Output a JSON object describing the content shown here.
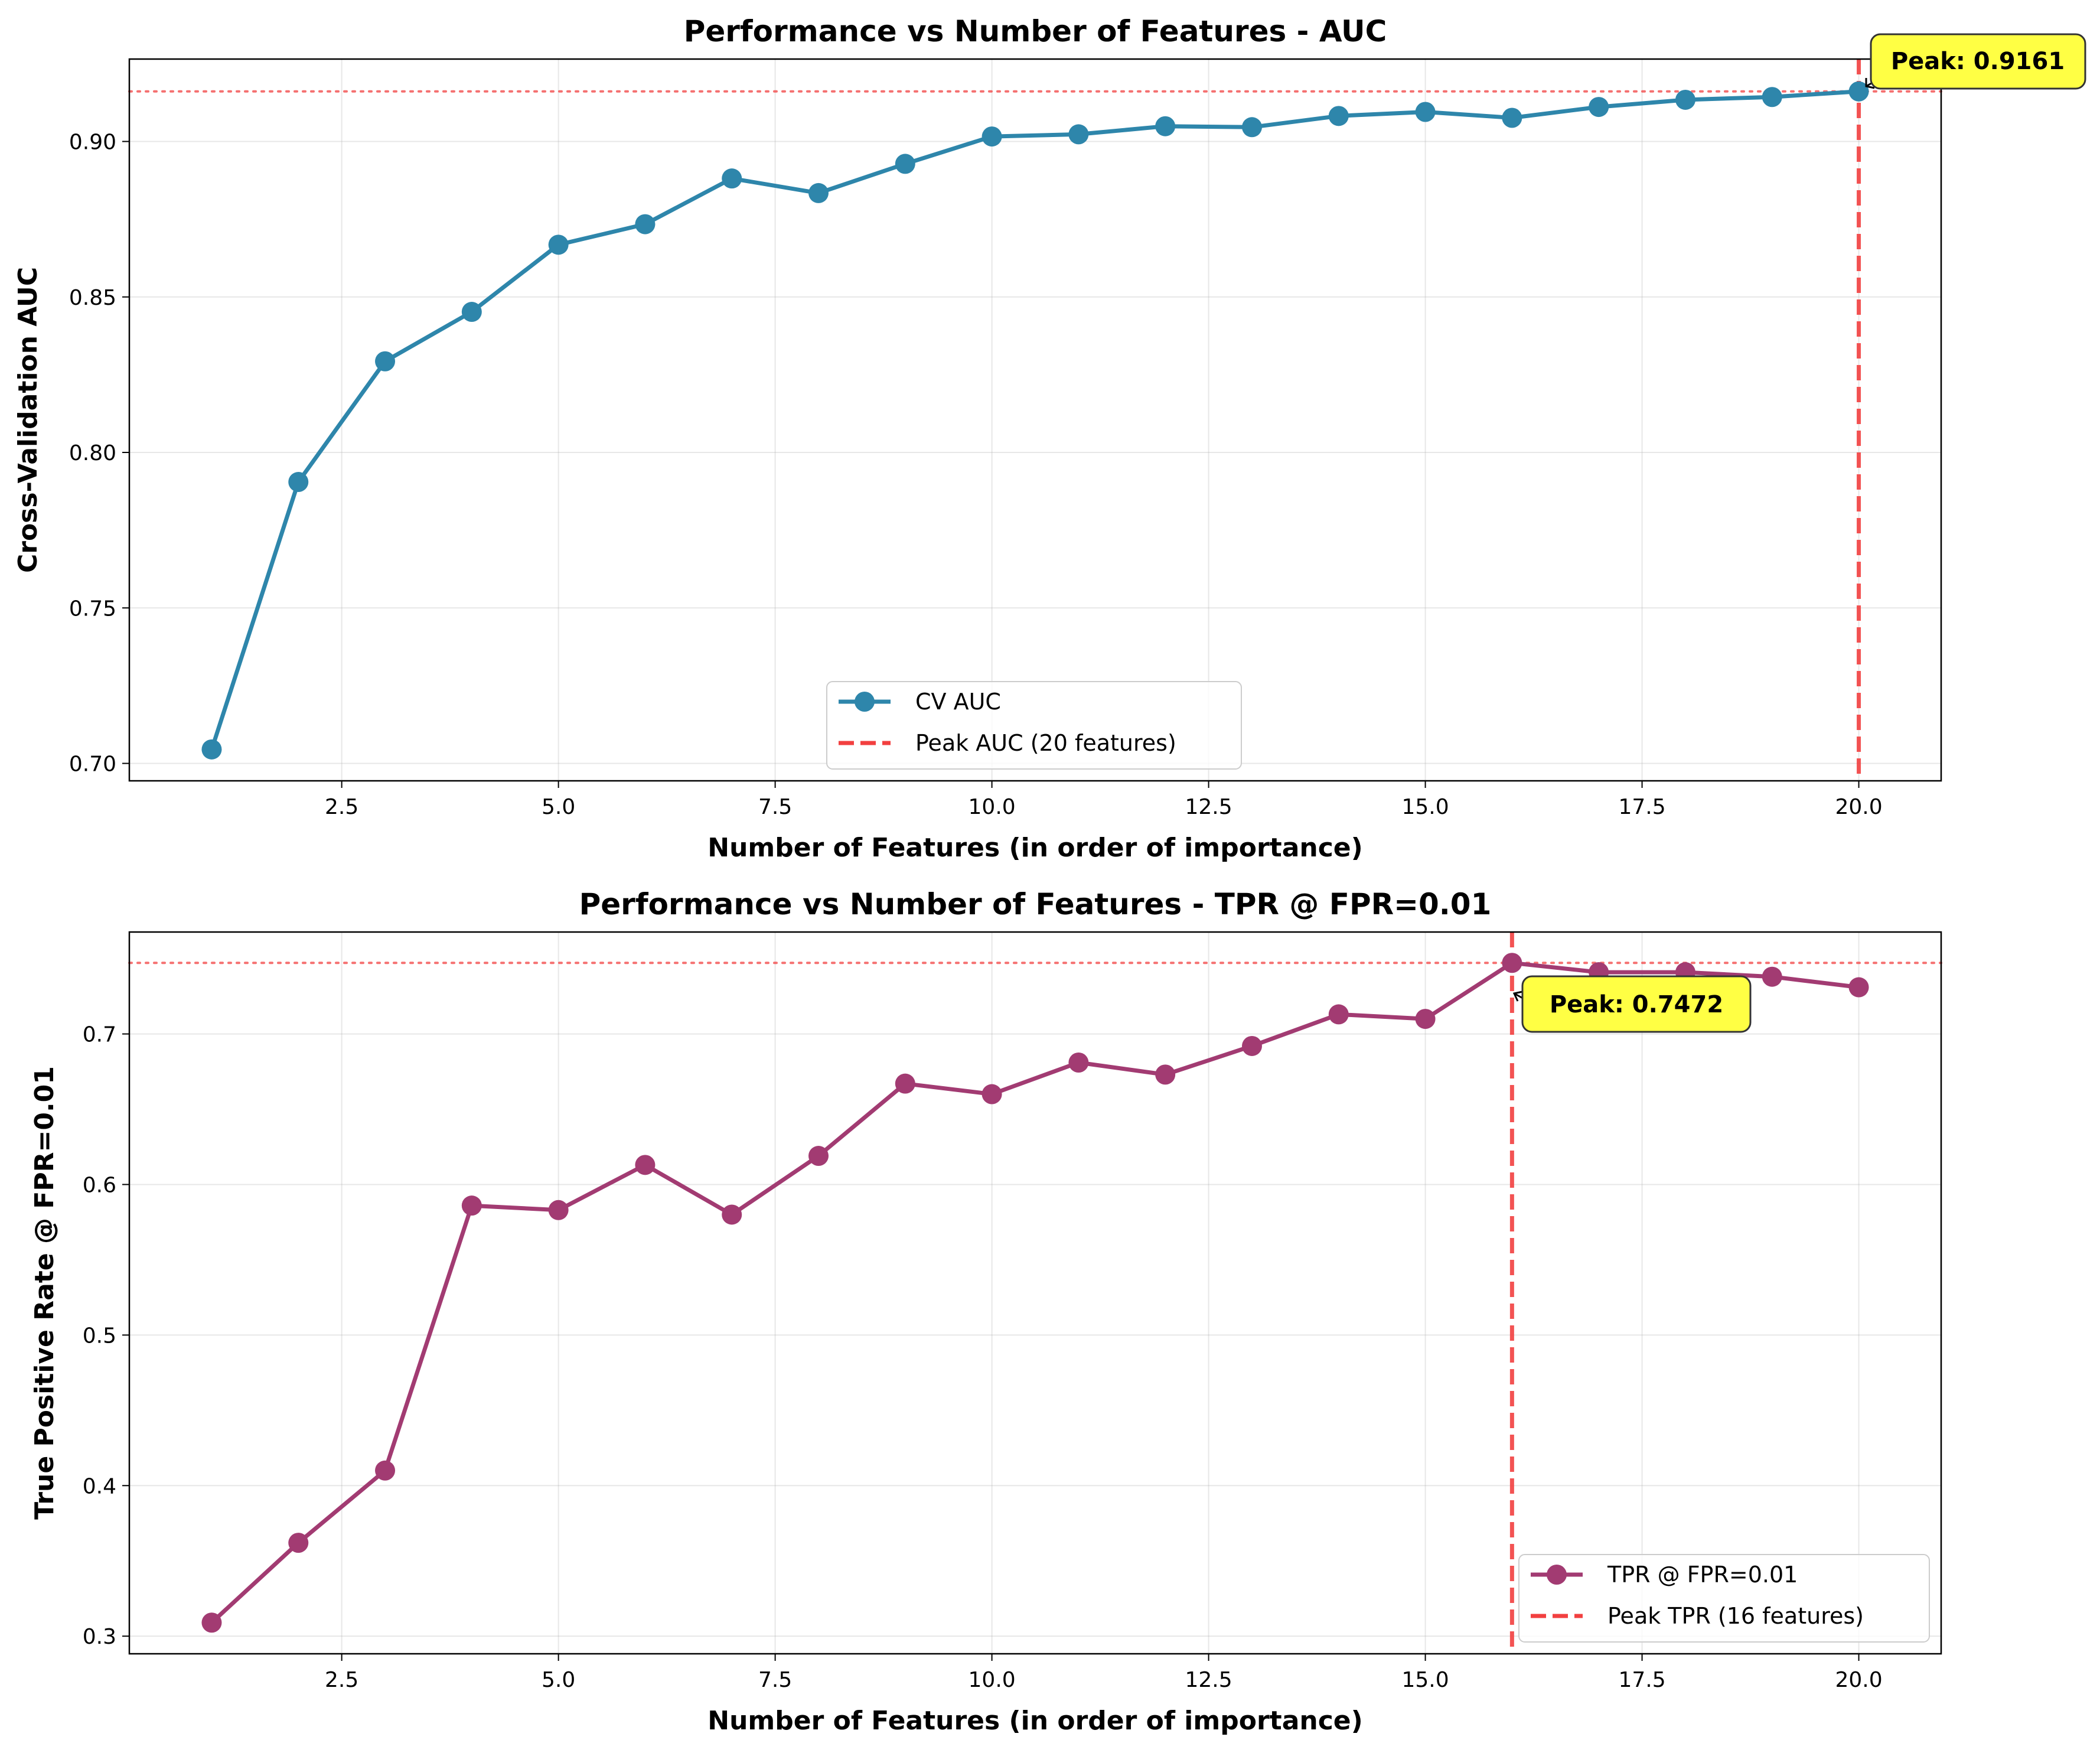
{
  "chart_data": [
    {
      "type": "line",
      "title": "Performance vs Number of Features - AUC",
      "xlabel": "Number of Features (in order of importance)",
      "ylabel": "Cross-Validation AUC",
      "xlim": [
        0.05,
        20.95
      ],
      "ylim": [
        0.6944,
        0.9265
      ],
      "xticks": [
        2.5,
        5.0,
        7.5,
        10.0,
        12.5,
        15.0,
        17.5,
        20.0
      ],
      "xtick_labels": [
        "2.5",
        "5.0",
        "7.5",
        "10.0",
        "12.5",
        "15.0",
        "17.5",
        "20.0"
      ],
      "yticks": [
        0.7,
        0.75,
        0.8,
        0.85,
        0.9
      ],
      "ytick_labels": [
        "0.70",
        "0.75",
        "0.80",
        "0.85",
        "0.90"
      ],
      "grid": true,
      "legend_position": "lower center",
      "series": [
        {
          "name": "CV AUC",
          "color": "#2E86AB",
          "x": [
            1,
            2,
            3,
            4,
            5,
            6,
            7,
            8,
            9,
            10,
            11,
            12,
            13,
            14,
            15,
            16,
            17,
            18,
            19,
            20
          ],
          "values": [
            0.7045,
            0.7905,
            0.8293,
            0.8452,
            0.8668,
            0.8734,
            0.8881,
            0.8834,
            0.8928,
            0.9016,
            0.9023,
            0.9049,
            0.9046,
            0.9082,
            0.9095,
            0.9076,
            0.9111,
            0.9134,
            0.9143,
            0.9161
          ]
        }
      ],
      "peak": {
        "x": 20,
        "y": 0.9161,
        "line_color": "#F24040",
        "legend_label": "Peak AUC (20 features)",
        "annotation": "Peak: 0.9161"
      }
    },
    {
      "type": "line",
      "title": "Performance vs Number of Features - TPR @ FPR=0.01",
      "xlabel": "Number of Features (in order of importance)",
      "ylabel": "True Positive Rate @ FPR=0.01",
      "xlim": [
        0.05,
        20.95
      ],
      "ylim": [
        0.2883,
        0.7677
      ],
      "xticks": [
        2.5,
        5.0,
        7.5,
        10.0,
        12.5,
        15.0,
        17.5,
        20.0
      ],
      "xtick_labels": [
        "2.5",
        "5.0",
        "7.5",
        "10.0",
        "12.5",
        "15.0",
        "17.5",
        "20.0"
      ],
      "yticks": [
        0.3,
        0.4,
        0.5,
        0.6,
        0.7
      ],
      "ytick_labels": [
        "0.3",
        "0.4",
        "0.5",
        "0.6",
        "0.7"
      ],
      "grid": true,
      "legend_position": "lower right",
      "series": [
        {
          "name": "TPR @ FPR=0.01",
          "color": "#A23B72",
          "x": [
            1,
            2,
            3,
            4,
            5,
            6,
            7,
            8,
            9,
            10,
            11,
            12,
            13,
            14,
            15,
            16,
            17,
            18,
            19,
            20
          ],
          "values": [
            0.309,
            0.362,
            0.41,
            0.586,
            0.583,
            0.613,
            0.58,
            0.619,
            0.667,
            0.66,
            0.681,
            0.673,
            0.692,
            0.713,
            0.71,
            0.7472,
            0.741,
            0.741,
            0.738,
            0.731
          ]
        }
      ],
      "peak": {
        "x": 16,
        "y": 0.7472,
        "line_color": "#F24040",
        "legend_label": "Peak TPR (16 features)",
        "annotation": "Peak: 0.7472"
      }
    }
  ]
}
